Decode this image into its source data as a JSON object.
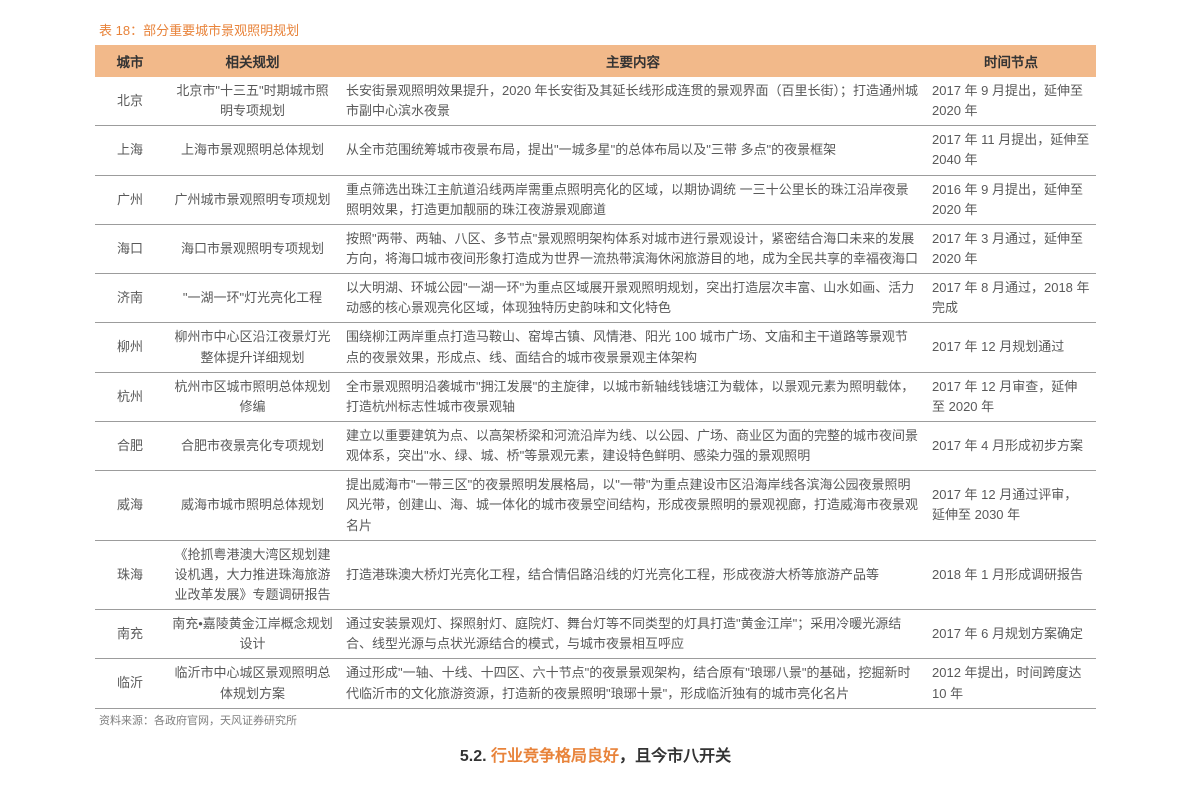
{
  "title": "表 18：部分重要城市景观照明规划",
  "columns": [
    "城市",
    "相关规划",
    "主要内容",
    "时间节点"
  ],
  "rows": [
    {
      "city": "北京",
      "plan": "北京市\"十三五\"时期城市照明专项规划",
      "content": "长安街景观照明效果提升，2020 年长安街及其延长线形成连贯的景观界面（百里长街）；打造通州城市副中心滨水夜景",
      "time": "2017 年 9 月提出，延伸至 2020 年"
    },
    {
      "city": "上海",
      "plan": "上海市景观照明总体规划",
      "content": "从全市范围统筹城市夜景布局，提出\"一城多星\"的总体布局以及\"三带  多点\"的夜景框架",
      "time": "2017 年 11 月提出，延伸至 2040 年"
    },
    {
      "city": "广州",
      "plan": "广州城市景观照明专项规划",
      "content": "重点筛选出珠江主航道沿线两岸需重点照明亮化的区域，以期协调统  一三十公里长的珠江沿岸夜景照明效果，打造更加靓丽的珠江夜游景观廊道",
      "time": "2016 年 9 月提出，延伸至 2020 年"
    },
    {
      "city": "海口",
      "plan": "海口市景观照明专项规划",
      "content": "按照\"两带、两轴、八区、多节点\"景观照明架构体系对城市进行景观设计，紧密结合海口未来的发展方向，将海口城市夜间形象打造成为世界一流热带滨海休闲旅游目的地，成为全民共享的幸福夜海口",
      "time": "2017 年 3 月通过，延伸至 2020 年"
    },
    {
      "city": "济南",
      "plan": "\"一湖一环\"灯光亮化工程",
      "content": "以大明湖、环城公园\"一湖一环\"为重点区域展开景观照明规划，突出打造层次丰富、山水如画、活力动感的核心景观亮化区域，体现独特历史韵味和文化特色",
      "time": "2017 年 8 月通过，2018 年完成"
    },
    {
      "city": "柳州",
      "plan": "柳州市中心区沿江夜景灯光整体提升详细规划",
      "content": "围绕柳江两岸重点打造马鞍山、窑埠古镇、风情港、阳光 100 城市广场、文庙和主干道路等景观节点的夜景效果，形成点、线、面结合的城市夜景景观主体架构",
      "time": "2017 年 12 月规划通过"
    },
    {
      "city": "杭州",
      "plan": "杭州市区城市照明总体规划修编",
      "content": "全市景观照明沿袭城市\"拥江发展\"的主旋律，以城市新轴线钱塘江为载体，以景观元素为照明载体，打造杭州标志性城市夜景观轴",
      "time": "2017 年 12 月审查，延伸至 2020 年"
    },
    {
      "city": "合肥",
      "plan": "合肥市夜景亮化专项规划",
      "content": "建立以重要建筑为点、以高架桥梁和河流沿岸为线、以公园、广场、商业区为面的完整的城市夜间景观体系，突出\"水、绿、城、桥\"等景观元素，建设特色鲜明、感染力强的景观照明",
      "time": "2017 年 4 月形成初步方案"
    },
    {
      "city": "威海",
      "plan": "威海市城市照明总体规划",
      "content": "提出威海市\"一带三区\"的夜景照明发展格局，以\"一带\"为重点建设市区沿海岸线各滨海公园夜景照明风光带，创建山、海、城一体化的城市夜景空间结构，形成夜景照明的景观视廊，打造威海市夜景观名片",
      "time": "2017 年 12 月通过评审，延伸至 2030 年"
    },
    {
      "city": "珠海",
      "plan": "《抢抓粤港澳大湾区规划建设机遇，大力推进珠海旅游业改革发展》专题调研报告",
      "content": "打造港珠澳大桥灯光亮化工程，结合情侣路沿线的灯光亮化工程，形成夜游大桥等旅游产品等",
      "time": "2018 年 1 月形成调研报告"
    },
    {
      "city": "南充",
      "plan": "南充•嘉陵黄金江岸概念规划设计",
      "content": "通过安装景观灯、探照射灯、庭院灯、舞台灯等不同类型的灯具打造\"黄金江岸\"；采用冷暖光源结合、线型光源与点状光源结合的模式，与城市夜景相互呼应",
      "time": "2017 年 6 月规划方案确定"
    },
    {
      "city": "临沂",
      "plan": "临沂市中心城区景观照明总体规划方案",
      "content": "通过形成\"一轴、十线、十四区、六十节点\"的夜景景观架构，结合原有\"琅琊八景\"的基础，挖掘新时代临沂市的文化旅游资源，打造新的夜景照明\"琅琊十景\"，形成临沂独有的城市亮化名片",
      "time": "2012 年提出，时间跨度达 10 年"
    }
  ],
  "source": "资料来源：各政府官网，天风证券研究所",
  "footer": {
    "num": "5.2.",
    "part_a": "行业竞争格局良好",
    "sep": "，",
    "part_b": "且今市八开关"
  },
  "colors": {
    "accent": "#e8833a",
    "header_bg": "#f2b98a",
    "text": "#595959",
    "border": "#9c9c9c"
  }
}
